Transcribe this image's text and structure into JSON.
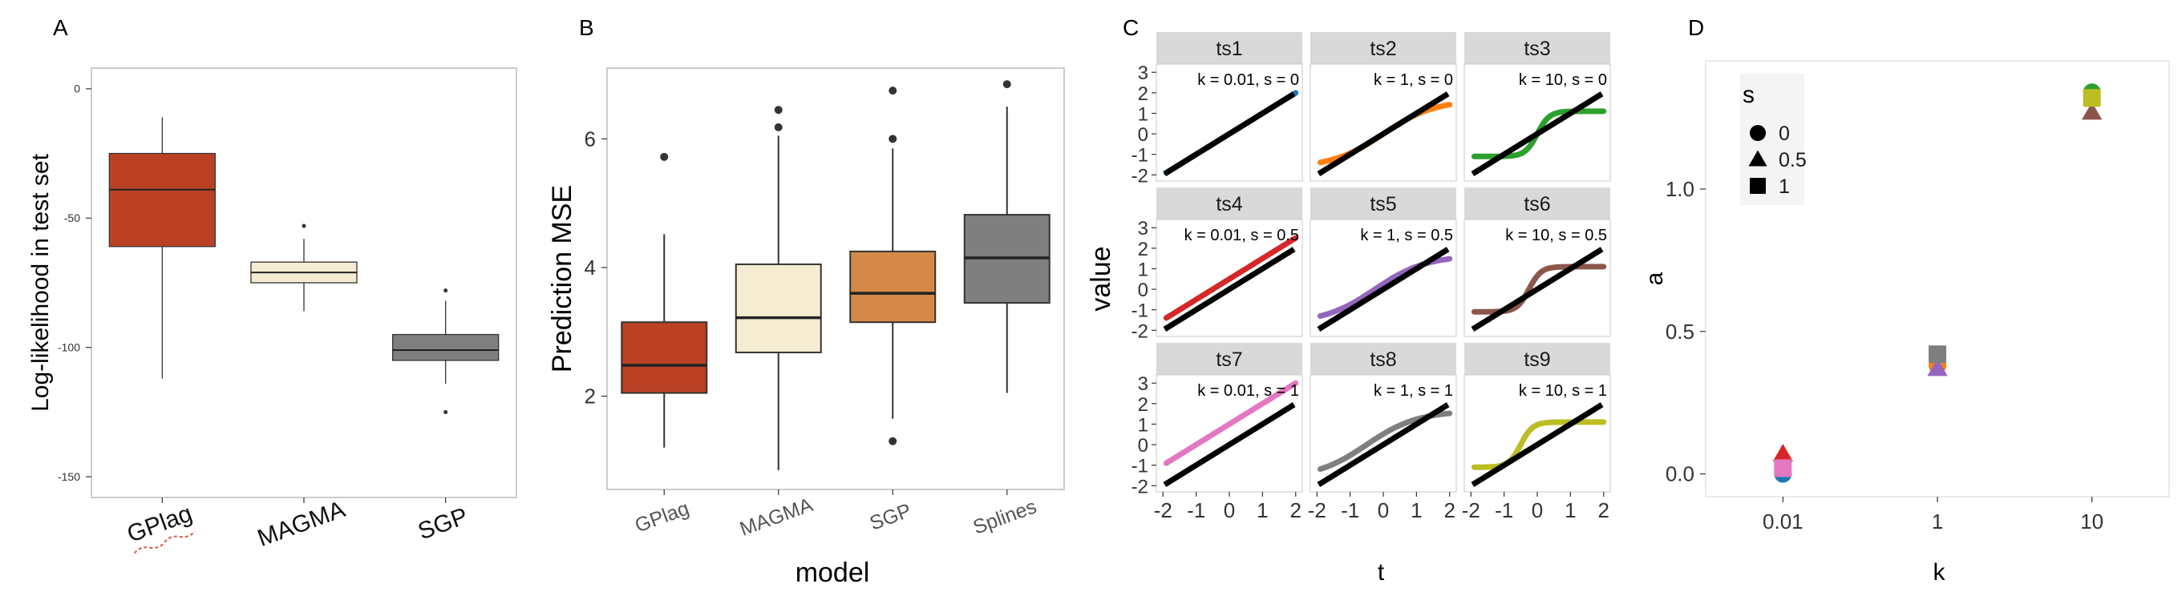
{
  "chart_data": [
    {
      "panel": "A",
      "type": "boxplot",
      "ylabel": "Log-likelihood in test set",
      "xlabel": "",
      "ylim": [
        -158,
        8
      ],
      "yticks": [
        0,
        -50,
        -100,
        -150
      ],
      "categories": [
        "GPlag",
        "MAGMA",
        "SGP"
      ],
      "boxes": [
        {
          "name": "GPlag",
          "min": -112,
          "q1": -61,
          "median": -39,
          "q3": -25,
          "max": -11,
          "outliers": [],
          "color": "#bb4124"
        },
        {
          "name": "MAGMA",
          "min": -86,
          "q1": -75,
          "median": -71,
          "q3": -67,
          "max": -58,
          "outliers": [
            -53
          ],
          "color": "#f5ecd2"
        },
        {
          "name": "SGP",
          "min": -114,
          "q1": -105,
          "median": -101,
          "q3": -95,
          "max": -82,
          "outliers": [
            -78,
            -125
          ],
          "color": "#7f7f7f"
        }
      ],
      "grid": false,
      "tick_label_rotation": -20
    },
    {
      "panel": "B",
      "type": "boxplot",
      "ylabel": "Prediction MSE",
      "xlabel": "model",
      "ylim": [
        0.55,
        7.1
      ],
      "yticks": [
        2,
        4,
        6
      ],
      "categories": [
        "GPlag",
        "MAGMA",
        "SGP",
        "Splines"
      ],
      "boxes": [
        {
          "name": "GPlag",
          "min": 1.2,
          "q1": 2.05,
          "median": 2.48,
          "q3": 3.15,
          "max": 4.52,
          "outliers": [
            5.72
          ],
          "color": "#bb4124"
        },
        {
          "name": "MAGMA",
          "min": 0.85,
          "q1": 2.68,
          "median": 3.22,
          "q3": 4.05,
          "max": 6.05,
          "outliers": [
            6.18,
            6.45
          ],
          "color": "#f5ecd2"
        },
        {
          "name": "SGP",
          "min": 1.65,
          "q1": 3.15,
          "median": 3.6,
          "q3": 4.25,
          "max": 5.85,
          "outliers": [
            6.0,
            6.75,
            1.3
          ],
          "color": "#d58948"
        },
        {
          "name": "Splines",
          "min": 2.05,
          "q1": 3.45,
          "median": 4.15,
          "q3": 4.82,
          "max": 6.5,
          "outliers": [
            6.85
          ],
          "color": "#7f7f7f"
        }
      ],
      "grid": false,
      "tick_label_rotation": -20
    },
    {
      "panel": "C",
      "type": "line",
      "xlabel": "t",
      "ylabel": "value",
      "xlim": [
        -2.2,
        2.2
      ],
      "ylim": [
        -2.3,
        3.4
      ],
      "xticks": [
        -2,
        -1,
        0,
        1,
        2
      ],
      "yticks": [
        -2,
        -1,
        0,
        1,
        2,
        3
      ],
      "reference_line": {
        "description": "y = t",
        "color": "#000000"
      },
      "facets": [
        {
          "title": "ts1",
          "label": "k = 0.01, s = 0",
          "k": 0.01,
          "s": 0,
          "color": "#1f77b4"
        },
        {
          "title": "ts2",
          "label": "k = 1, s = 0",
          "k": 1,
          "s": 0,
          "color": "#ff7f0e"
        },
        {
          "title": "ts3",
          "label": "k = 10, s = 0",
          "k": 10,
          "s": 0,
          "color": "#2ca02c"
        },
        {
          "title": "ts4",
          "label": "k = 0.01, s = 0.5",
          "k": 0.01,
          "s": 0.5,
          "color": "#d62728"
        },
        {
          "title": "ts5",
          "label": "k = 1, s = 0.5",
          "k": 1,
          "s": 0.5,
          "color": "#9467bd"
        },
        {
          "title": "ts6",
          "label": "k = 10, s = 0.5",
          "k": 10,
          "s": 0.5,
          "color": "#8c564b"
        },
        {
          "title": "ts7",
          "label": "k = 0.01, s = 1",
          "k": 0.01,
          "s": 1,
          "color": "#e377c2"
        },
        {
          "title": "ts8",
          "label": "k = 1, s = 1",
          "k": 1,
          "s": 1,
          "color": "#7f7f7f"
        },
        {
          "title": "ts9",
          "label": "k = 10, s = 1",
          "k": 10,
          "s": 1,
          "color": "#bcbd22"
        }
      ]
    },
    {
      "panel": "D",
      "type": "scatter",
      "xlabel": "k",
      "ylabel": "a",
      "ylim": [
        -0.08,
        1.45
      ],
      "yticks": [
        0.0,
        0.5,
        1.0
      ],
      "yticklabels": [
        "0.0",
        "0.5",
        "1.0"
      ],
      "categories": [
        "0.01",
        "1",
        "10"
      ],
      "legend": {
        "title": "s",
        "placement": "top-left",
        "entries": [
          {
            "label": "0",
            "shape": "circle"
          },
          {
            "label": "0.5",
            "shape": "triangle"
          },
          {
            "label": "1",
            "shape": "square"
          }
        ]
      },
      "points": [
        {
          "series": "ts1",
          "k": "0.01",
          "s": "0",
          "a": 0.0,
          "color": "#1f77b4"
        },
        {
          "series": "ts4",
          "k": "0.01",
          "s": "0.5",
          "a": 0.07,
          "color": "#d62728"
        },
        {
          "series": "ts7",
          "k": "0.01",
          "s": "1",
          "a": 0.02,
          "color": "#e377c2"
        },
        {
          "series": "ts2",
          "k": "1",
          "s": "0",
          "a": 0.38,
          "color": "#ff7f0e"
        },
        {
          "series": "ts5",
          "k": "1",
          "s": "0.5",
          "a": 0.37,
          "color": "#9467bd"
        },
        {
          "series": "ts8",
          "k": "1",
          "s": "1",
          "a": 0.42,
          "color": "#7f7f7f"
        },
        {
          "series": "ts3",
          "k": "10",
          "s": "0",
          "a": 1.34,
          "color": "#2ca02c"
        },
        {
          "series": "ts6",
          "k": "10",
          "s": "0.5",
          "a": 1.27,
          "color": "#8c564b"
        },
        {
          "series": "ts9",
          "k": "10",
          "s": "1",
          "a": 1.32,
          "color": "#bcbd22"
        }
      ]
    }
  ],
  "panel_labels": [
    "A",
    "B",
    "C",
    "D"
  ],
  "colors": {
    "axis": "#333333",
    "strip": "#d9d9d9",
    "box_line": "#333333",
    "panel_border": "#bbbbbb"
  }
}
